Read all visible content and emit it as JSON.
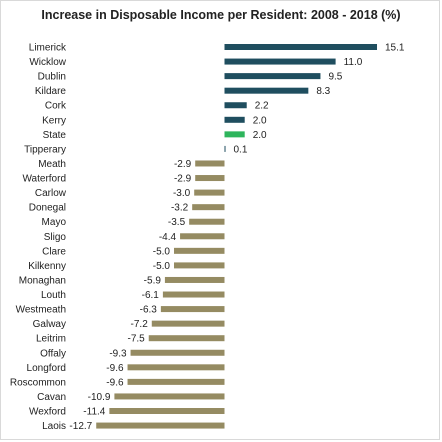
{
  "chart_data": {
    "type": "bar",
    "orientation": "horizontal",
    "title": "Increase in Disposable Income per Resident:  2008  - 2018  (%)",
    "xlabel": "",
    "ylabel": "",
    "grid": false,
    "legend": "none",
    "xlim": [
      -12.7,
      15.1
    ],
    "categories": [
      "Limerick",
      "Wicklow",
      "Dublin",
      "Kildare",
      "Cork",
      "Kerry",
      "State",
      "Tipperary",
      "Meath",
      "Waterford",
      "Carlow",
      "Donegal",
      "Mayo",
      "Sligo",
      "Clare",
      "Kilkenny",
      "Monaghan",
      "Louth",
      "Westmeath",
      "Galway",
      "Leitrim",
      "Offaly",
      "Longford",
      "Roscommon",
      "Cavan",
      "Wexford",
      "Laois"
    ],
    "values": [
      15.1,
      11.0,
      9.5,
      8.3,
      2.2,
      2.0,
      2.0,
      0.1,
      -2.9,
      -2.9,
      -3.0,
      -3.2,
      -3.5,
      -4.4,
      -5.0,
      -5.0,
      -5.9,
      -6.1,
      -6.3,
      -7.2,
      -7.5,
      -9.3,
      -9.6,
      -9.6,
      -10.9,
      -11.4,
      -12.7
    ],
    "value_labels": [
      "15.1",
      "11.0",
      "9.5",
      "8.3",
      "2.2",
      "2.0",
      "2.0",
      "0.1",
      "-2.9",
      "-2.9",
      "-3.0",
      "-3.2",
      "-3.5",
      "-4.4",
      "-5.0",
      "-5.0",
      "-5.9",
      "-6.1",
      "-6.3",
      "-7.2",
      "-7.5",
      "-9.3",
      "-9.6",
      "-9.6",
      "-10.9",
      "-11.4",
      "-12.7"
    ],
    "colors": {
      "positive": "#1f4e5f",
      "highlight": "#2eb55c",
      "negative": "#958b62"
    },
    "highlight_category": "State"
  }
}
